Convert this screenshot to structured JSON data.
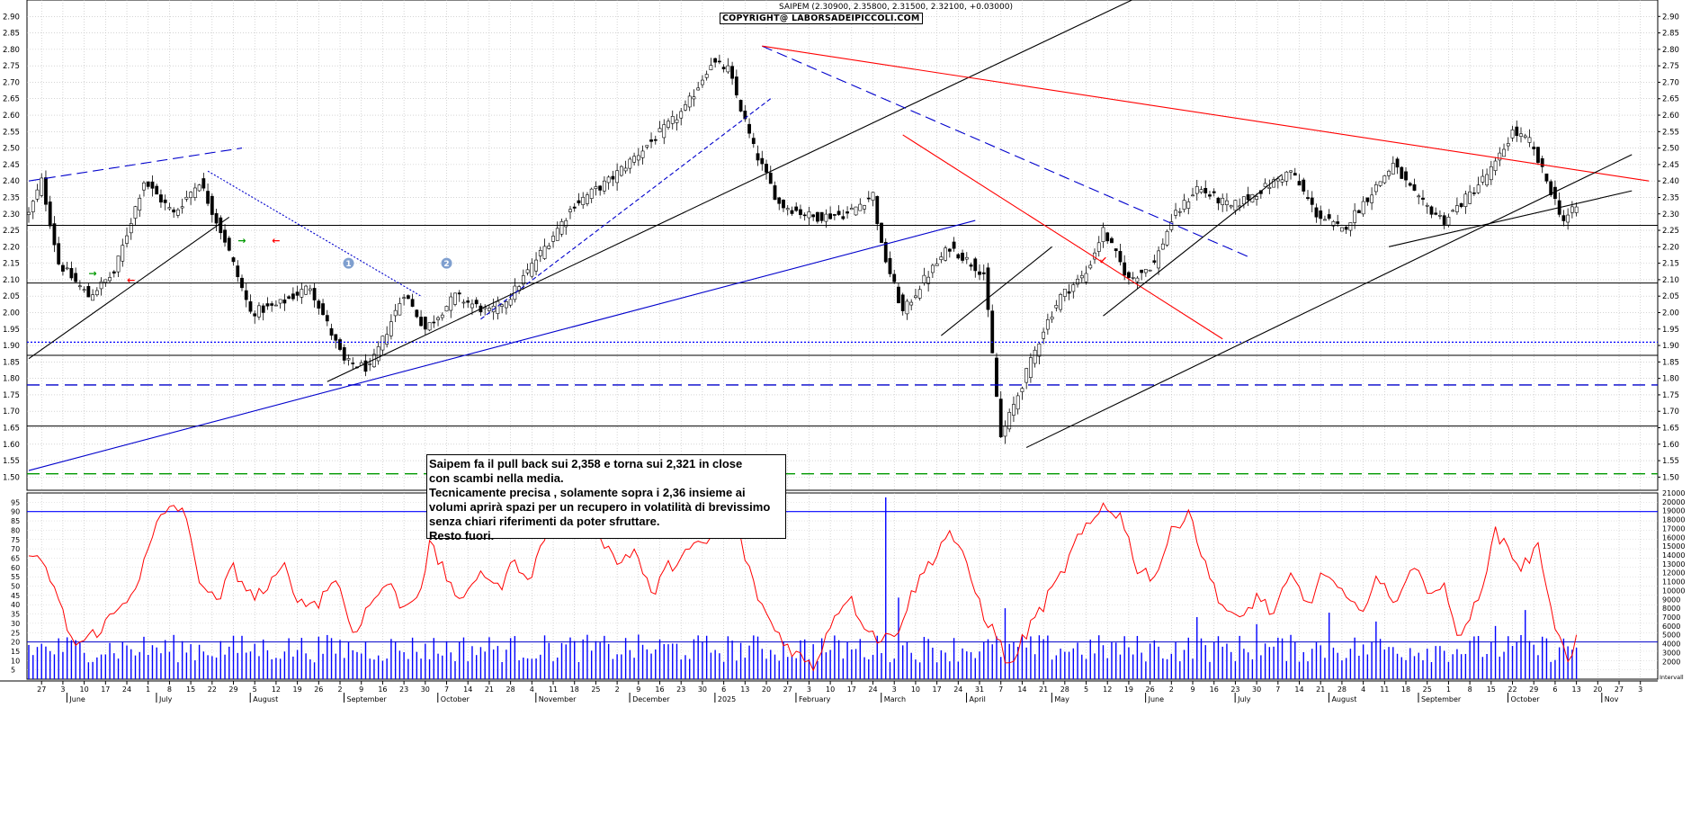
{
  "header": {
    "info": "SAIPEM (2.30900, 2.35800, 2.31500, 2.32100, +0.03000)",
    "copyright": "COPYRIGHT@ LABORSADEIPICCOLI.COM"
  },
  "note": {
    "lines": [
      "Saipem fa il pull back sui 2,358 e torna sui 2,321 in close",
      "con scambi nella media.",
      "Tecnicamente precisa , solamente sopra i 2,36 insieme ai",
      "volumi aprirà spazi per un recupero in volatilità di brevissimo",
      "senza chiari riferimenti da poter sfruttare.",
      "Resto fuori."
    ]
  },
  "chart_data": [
    {
      "type": "candlestick",
      "ylim": [
        1.46,
        2.95
      ],
      "price_ticks": [
        "1.50",
        "1.55",
        "1.60",
        "1.65",
        "1.70",
        "1.75",
        "1.80",
        "1.85",
        "1.90",
        "1.95",
        "2.00",
        "2.05",
        "2.10",
        "2.15",
        "2.20",
        "2.25",
        "2.30",
        "2.35",
        "2.40",
        "2.45",
        "2.50",
        "2.55",
        "2.60",
        "2.65",
        "2.70",
        "2.75",
        "2.80",
        "2.85",
        "2.90"
      ],
      "price_anchors": [
        {
          "bar": 0,
          "price": 2.3
        },
        {
          "bar": 3,
          "price": 2.4
        },
        {
          "bar": 7,
          "price": 2.15
        },
        {
          "bar": 14,
          "price": 2.05
        },
        {
          "bar": 20,
          "price": 2.12
        },
        {
          "bar": 27,
          "price": 2.4
        },
        {
          "bar": 34,
          "price": 2.3
        },
        {
          "bar": 40,
          "price": 2.4
        },
        {
          "bar": 46,
          "price": 2.22
        },
        {
          "bar": 52,
          "price": 2.0
        },
        {
          "bar": 58,
          "price": 2.02
        },
        {
          "bar": 66,
          "price": 2.08
        },
        {
          "bar": 74,
          "price": 1.85
        },
        {
          "bar": 80,
          "price": 1.83
        },
        {
          "bar": 88,
          "price": 2.06
        },
        {
          "bar": 93,
          "price": 1.95
        },
        {
          "bar": 100,
          "price": 2.05
        },
        {
          "bar": 108,
          "price": 2.0
        },
        {
          "bar": 113,
          "price": 2.05
        },
        {
          "bar": 120,
          "price": 2.18
        },
        {
          "bar": 128,
          "price": 2.33
        },
        {
          "bar": 136,
          "price": 2.4
        },
        {
          "bar": 146,
          "price": 2.52
        },
        {
          "bar": 154,
          "price": 2.62
        },
        {
          "bar": 160,
          "price": 2.76
        },
        {
          "bar": 164,
          "price": 2.74
        },
        {
          "bar": 170,
          "price": 2.5
        },
        {
          "bar": 176,
          "price": 2.33
        },
        {
          "bar": 184,
          "price": 2.29
        },
        {
          "bar": 192,
          "price": 2.3
        },
        {
          "bar": 198,
          "price": 2.36
        },
        {
          "bar": 200,
          "price": 2.2
        },
        {
          "bar": 205,
          "price": 2.0
        },
        {
          "bar": 210,
          "price": 2.1
        },
        {
          "bar": 216,
          "price": 2.2
        },
        {
          "bar": 224,
          "price": 2.12
        },
        {
          "bar": 228,
          "price": 1.62
        },
        {
          "bar": 232,
          "price": 1.75
        },
        {
          "bar": 238,
          "price": 1.95
        },
        {
          "bar": 242,
          "price": 2.05
        },
        {
          "bar": 248,
          "price": 2.12
        },
        {
          "bar": 252,
          "price": 2.25
        },
        {
          "bar": 258,
          "price": 2.1
        },
        {
          "bar": 264,
          "price": 2.15
        },
        {
          "bar": 268,
          "price": 2.28
        },
        {
          "bar": 274,
          "price": 2.38
        },
        {
          "bar": 282,
          "price": 2.32
        },
        {
          "bar": 290,
          "price": 2.38
        },
        {
          "bar": 296,
          "price": 2.43
        },
        {
          "bar": 302,
          "price": 2.3
        },
        {
          "bar": 308,
          "price": 2.25
        },
        {
          "bar": 314,
          "price": 2.35
        },
        {
          "bar": 320,
          "price": 2.45
        },
        {
          "bar": 326,
          "price": 2.34
        },
        {
          "bar": 332,
          "price": 2.28
        },
        {
          "bar": 338,
          "price": 2.36
        },
        {
          "bar": 344,
          "price": 2.45
        },
        {
          "bar": 348,
          "price": 2.55
        },
        {
          "bar": 352,
          "price": 2.52
        },
        {
          "bar": 356,
          "price": 2.4
        },
        {
          "bar": 360,
          "price": 2.28
        },
        {
          "bar": 363,
          "price": 2.32
        }
      ],
      "bar_count": 364,
      "horizontal_levels": [
        {
          "price": 2.265,
          "style": "solid",
          "color": "#000000"
        },
        {
          "price": 2.09,
          "style": "solid",
          "color": "#000000"
        },
        {
          "price": 1.91,
          "style": "dotted",
          "color": "#0000ff"
        },
        {
          "price": 1.87,
          "style": "solid",
          "color": "#000000"
        },
        {
          "price": 1.78,
          "style": "dashed",
          "color": "#0000cc"
        },
        {
          "price": 1.655,
          "style": "solid",
          "color": "#000000"
        },
        {
          "price": 1.51,
          "style": "dashed",
          "color": "#009900"
        }
      ],
      "trendlines": [
        {
          "from": [
            0,
            1.86
          ],
          "to": [
            47,
            2.29
          ],
          "color": "#000000",
          "style": "solid"
        },
        {
          "from": [
            0,
            2.4
          ],
          "to": [
            50,
            2.5
          ],
          "color": "#0000cc",
          "style": "dashed"
        },
        {
          "from": [
            42,
            2.43
          ],
          "to": [
            92,
            2.05
          ],
          "color": "#0000cc",
          "style": "dotted"
        },
        {
          "from": [
            70,
            1.79
          ],
          "to": [
            262,
            2.97
          ],
          "color": "#000000",
          "style": "solid"
        },
        {
          "from": [
            0,
            1.52
          ],
          "to": [
            222,
            2.28
          ],
          "color": "#0000cc",
          "style": "solid"
        },
        {
          "from": [
            106,
            1.98
          ],
          "to": [
            174,
            2.65
          ],
          "color": "#0000cc",
          "style": "dashed2"
        },
        {
          "from": [
            172,
            2.81
          ],
          "to": [
            286,
            2.17
          ],
          "color": "#0000cc",
          "style": "dashed"
        },
        {
          "from": [
            172,
            2.81
          ],
          "to": [
            380,
            2.4
          ],
          "color": "#ff0000",
          "style": "solid"
        },
        {
          "from": [
            205,
            2.54
          ],
          "to": [
            280,
            1.92
          ],
          "color": "#ff0000",
          "style": "solid"
        },
        {
          "from": [
            234,
            1.59
          ],
          "to": [
            376,
            2.48
          ],
          "color": "#000000",
          "style": "solid"
        },
        {
          "from": [
            214,
            1.93
          ],
          "to": [
            240,
            2.2
          ],
          "color": "#000000",
          "style": "solid"
        },
        {
          "from": [
            252,
            1.99
          ],
          "to": [
            294,
            2.42
          ],
          "color": "#000000",
          "style": "solid"
        },
        {
          "from": [
            319,
            2.2
          ],
          "to": [
            376,
            2.37
          ],
          "color": "#000000",
          "style": "solid"
        }
      ],
      "markers": [
        {
          "bar": 75,
          "price": 2.15,
          "label": "1",
          "kind": "circle"
        },
        {
          "bar": 98,
          "price": 2.15,
          "label": "2",
          "kind": "circle"
        },
        {
          "bar": 15,
          "price": 2.12,
          "label": "→",
          "kind": "arrow",
          "color": "#009900"
        },
        {
          "bar": 24,
          "price": 2.1,
          "label": "←",
          "kind": "arrow",
          "color": "#ff0000"
        },
        {
          "bar": 50,
          "price": 2.22,
          "label": "→",
          "kind": "arrow",
          "color": "#009900"
        },
        {
          "bar": 58,
          "price": 2.22,
          "label": "←",
          "kind": "arrow",
          "color": "#ff0000"
        },
        {
          "bar": 252,
          "price": 2.16,
          "label": "↙",
          "kind": "arrow",
          "color": "#ff0000"
        }
      ]
    },
    {
      "type": "line",
      "name": "oscillator",
      "ylim": [
        0,
        100
      ],
      "ticks": [
        "5",
        "10",
        "15",
        "20",
        "25",
        "30",
        "35",
        "40",
        "45",
        "50",
        "55",
        "60",
        "65",
        "70",
        "75",
        "80",
        "85",
        "90",
        "95"
      ],
      "reference_level": 90,
      "anchors": [
        [
          0,
          68
        ],
        [
          5,
          55
        ],
        [
          9,
          28
        ],
        [
          11,
          18
        ],
        [
          14,
          22
        ],
        [
          18,
          30
        ],
        [
          22,
          40
        ],
        [
          26,
          55
        ],
        [
          30,
          82
        ],
        [
          33,
          93
        ],
        [
          36,
          92
        ],
        [
          40,
          55
        ],
        [
          44,
          40
        ],
        [
          48,
          60
        ],
        [
          52,
          45
        ],
        [
          56,
          48
        ],
        [
          60,
          60
        ],
        [
          64,
          40
        ],
        [
          68,
          42
        ],
        [
          72,
          55
        ],
        [
          76,
          25
        ],
        [
          80,
          40
        ],
        [
          84,
          52
        ],
        [
          88,
          38
        ],
        [
          92,
          50
        ],
        [
          94,
          72
        ],
        [
          98,
          55
        ],
        [
          102,
          40
        ],
        [
          106,
          60
        ],
        [
          110,
          48
        ],
        [
          114,
          63
        ],
        [
          118,
          55
        ],
        [
          122,
          85
        ],
        [
          126,
          82
        ],
        [
          130,
          93
        ],
        [
          134,
          78
        ],
        [
          138,
          62
        ],
        [
          142,
          70
        ],
        [
          146,
          45
        ],
        [
          150,
          60
        ],
        [
          154,
          68
        ],
        [
          158,
          72
        ],
        [
          162,
          78
        ],
        [
          166,
          82
        ],
        [
          170,
          50
        ],
        [
          174,
          30
        ],
        [
          178,
          18
        ],
        [
          182,
          10
        ],
        [
          184,
          6
        ],
        [
          188,
          30
        ],
        [
          192,
          45
        ],
        [
          196,
          30
        ],
        [
          200,
          20
        ],
        [
          204,
          28
        ],
        [
          208,
          50
        ],
        [
          212,
          65
        ],
        [
          216,
          80
        ],
        [
          220,
          60
        ],
        [
          224,
          35
        ],
        [
          228,
          18
        ],
        [
          230,
          6
        ],
        [
          234,
          25
        ],
        [
          238,
          40
        ],
        [
          242,
          55
        ],
        [
          246,
          75
        ],
        [
          250,
          85
        ],
        [
          252,
          94
        ],
        [
          256,
          88
        ],
        [
          260,
          60
        ],
        [
          264,
          55
        ],
        [
          268,
          78
        ],
        [
          272,
          92
        ],
        [
          276,
          60
        ],
        [
          280,
          40
        ],
        [
          284,
          30
        ],
        [
          288,
          45
        ],
        [
          292,
          35
        ],
        [
          296,
          55
        ],
        [
          300,
          40
        ],
        [
          304,
          58
        ],
        [
          308,
          45
        ],
        [
          312,
          35
        ],
        [
          316,
          55
        ],
        [
          320,
          40
        ],
        [
          324,
          60
        ],
        [
          328,
          50
        ],
        [
          332,
          48
        ],
        [
          336,
          20
        ],
        [
          340,
          45
        ],
        [
          344,
          78
        ],
        [
          346,
          74
        ],
        [
          350,
          60
        ],
        [
          354,
          70
        ],
        [
          356,
          52
        ],
        [
          358,
          30
        ],
        [
          360,
          15
        ],
        [
          362,
          10
        ],
        [
          363,
          22
        ]
      ]
    },
    {
      "type": "bar",
      "name": "volume",
      "ylim": [
        0,
        21000
      ],
      "ticks": [
        "2000",
        "3000",
        "4000",
        "5000",
        "6000",
        "7000",
        "8000",
        "9000",
        "10000",
        "11000",
        "12000",
        "13000",
        "14000",
        "15000",
        "16000",
        "17000",
        "18000",
        "19000",
        "20000",
        "21000"
      ],
      "spikes": [
        [
          201,
          20500
        ],
        [
          204,
          9200
        ],
        [
          229,
          8000
        ],
        [
          274,
          7000
        ],
        [
          288,
          6200
        ],
        [
          305,
          7500
        ],
        [
          316,
          6500
        ],
        [
          344,
          6000
        ],
        [
          351,
          7800
        ]
      ],
      "base_level": 4200
    },
    {
      "type": "axis",
      "date_ticks": [
        "27",
        "3",
        "10",
        "17",
        "24",
        "1",
        "8",
        "15",
        "22",
        "29",
        "5",
        "12",
        "19",
        "26",
        "2",
        "9",
        "16",
        "23",
        "30",
        "7",
        "14",
        "21",
        "28",
        "4",
        "11",
        "18",
        "25",
        "2",
        "9",
        "16",
        "23",
        "30",
        "6",
        "13",
        "20",
        "27",
        "3",
        "10",
        "17",
        "24",
        "3",
        "10",
        "17",
        "24",
        "31",
        "7",
        "14",
        "21",
        "28",
        "5",
        "12",
        "19",
        "26",
        "2",
        "9",
        "16",
        "23",
        "30",
        "7",
        "14",
        "21",
        "28",
        "4",
        "11",
        "18",
        "25",
        "1",
        "8",
        "15",
        "22",
        "29",
        "6",
        "13",
        "20",
        "27",
        "3",
        "10"
      ],
      "month_labels": [
        "June",
        "July",
        "August",
        "September",
        "October",
        "November",
        "December",
        "2025",
        "February",
        "March",
        "April",
        "May",
        "June",
        "July",
        "August",
        "September",
        "October",
        "Nov"
      ],
      "first_tick_bar": 3,
      "month_label_bars": [
        10,
        31,
        53,
        75,
        97,
        120,
        142,
        162,
        181,
        201,
        221,
        241,
        263,
        284,
        306,
        327,
        348,
        370
      ],
      "footer_label": "Intervall"
    }
  ]
}
